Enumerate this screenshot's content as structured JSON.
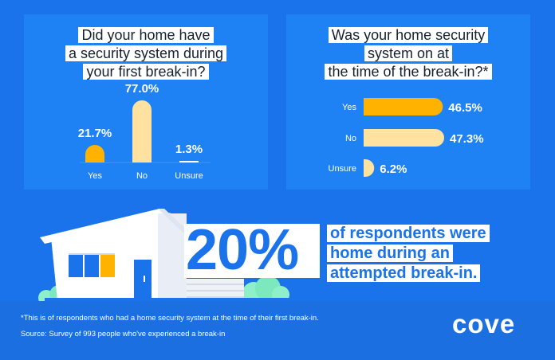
{
  "chart_data": [
    {
      "type": "bar",
      "title": "Did your home have a security system during your first break-in?",
      "title_lines": [
        "Did your home have",
        "a security system during",
        "your first break-in?"
      ],
      "categories": [
        "Yes",
        "No",
        "Unsure"
      ],
      "values": [
        21.7,
        77.0,
        1.3
      ],
      "value_labels": [
        "21.7%",
        "77.0%",
        "1.3%"
      ],
      "ylim": [
        0,
        77.0
      ],
      "colors": [
        "#ffb300",
        "#ffe2a0",
        "#ffffff"
      ]
    },
    {
      "type": "bar",
      "orientation": "horizontal",
      "title": "Was your home security system on at the time of the break-in?*",
      "title_lines": [
        "Was your home security",
        "system on at",
        "the time of the break-in?*"
      ],
      "categories": [
        "Yes",
        "No",
        "Unsure"
      ],
      "values": [
        46.5,
        47.3,
        6.2
      ],
      "value_labels": [
        "46.5%",
        "47.3%",
        "6.2%"
      ],
      "xlim": [
        0,
        47.3
      ],
      "colors": [
        "#ffb300",
        "#ffe2a0",
        "#ffe2a0"
      ]
    }
  ],
  "highlight": {
    "value": "20%",
    "lines": [
      "of respondents were",
      "home during an",
      "attempted break-in."
    ]
  },
  "footer": {
    "footnote": "*This is of respondents who had a home security system at the time of their first break-in.",
    "source": "Source: Survey of 993 people who've experienced a break-in",
    "logo": "cove"
  },
  "colors": {
    "background": "#1a73ea",
    "panel": "#1f82f4",
    "accent": "#ffb300",
    "accent_light": "#ffe2a0"
  },
  "icons": [
    "house-illustration",
    "shrub-illustration"
  ]
}
